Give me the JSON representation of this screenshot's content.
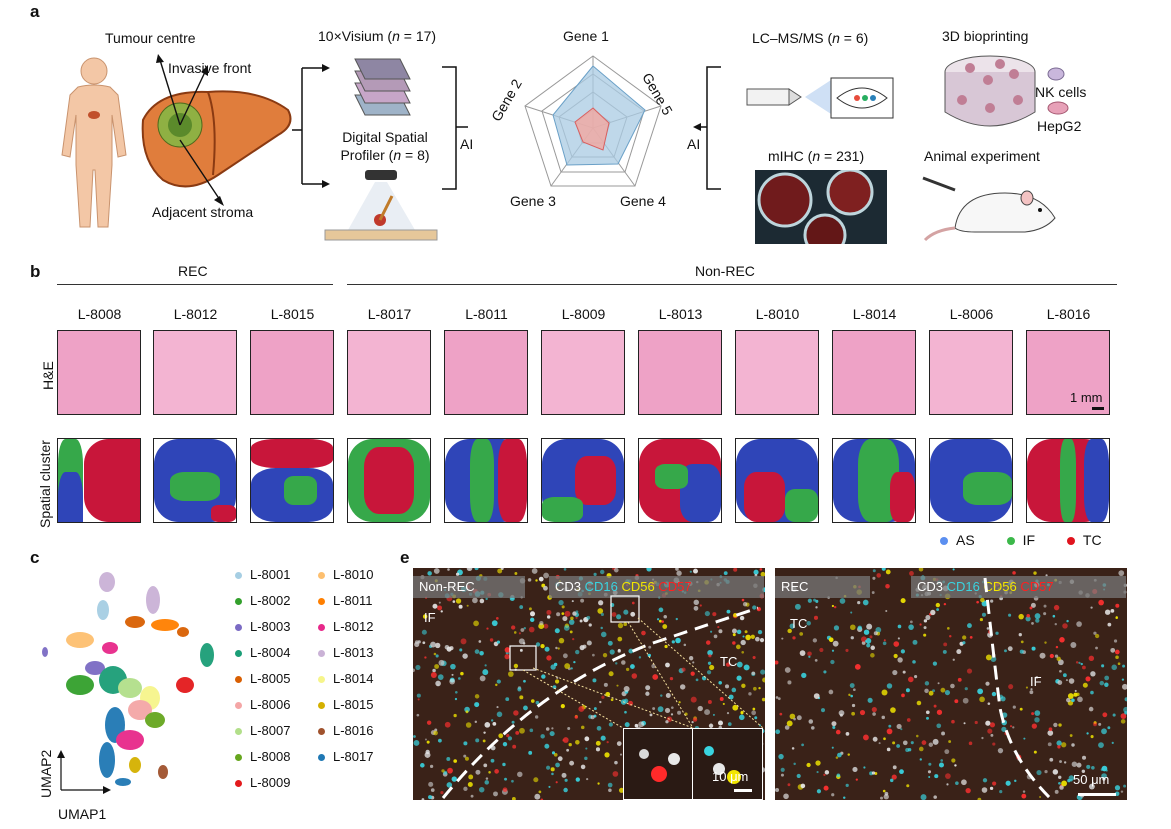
{
  "panels": {
    "a": "a",
    "b": "b",
    "c": "c",
    "e": "e"
  },
  "panel_a": {
    "tumour_centre": "Tumour centre",
    "invasive_front": "Invasive front",
    "adjacent_stroma": "Adjacent stroma",
    "visium_prefix": "10×Visium (",
    "visium_n": "n",
    "visium_suffix": " = 17)",
    "dsp_line1": "Digital Spatial",
    "dsp_line2_prefix": "Profiler (",
    "dsp_n": "n",
    "dsp_line2_suffix": " = 8)",
    "ai_left": "AI",
    "ai_right": "AI",
    "gene1": "Gene 1",
    "gene2": "Gene 2",
    "gene3": "Gene 3",
    "gene4": "Gene 4",
    "gene5": "Gene 5",
    "lcms_prefix": "LC–MS/MS (",
    "lcms_n": "n",
    "lcms_suffix": " = 6)",
    "mihc_prefix": "mIHC (",
    "mihc_n": "n",
    "mihc_suffix": " = 231)",
    "bioprinting": "3D bioprinting",
    "nk_cells": "NK cells",
    "hepg2": "HepG2",
    "animal": "Animal experiment"
  },
  "panel_b": {
    "rec": "REC",
    "non_rec": "Non-REC",
    "row_he": "H&E",
    "row_cluster": "Spatial cluster",
    "scale": "1 mm",
    "samples": [
      "L-8008",
      "L-8012",
      "L-8015",
      "L-8017",
      "L-8011",
      "L-8009",
      "L-8013",
      "L-8010",
      "L-8014",
      "L-8006",
      "L-8016"
    ],
    "legend": [
      {
        "label": "AS",
        "color": "#5b8ff0"
      },
      {
        "label": "IF",
        "color": "#3cb84a"
      },
      {
        "label": "TC",
        "color": "#e0141e"
      }
    ],
    "colors": {
      "as": "#2f45b8",
      "if": "#36a84a",
      "tc": "#c8163a"
    }
  },
  "panel_c": {
    "umap1": "UMAP1",
    "umap2": "UMAP2",
    "legend_col1": [
      {
        "label": "L-8001",
        "color": "#a6cee3"
      },
      {
        "label": "L-8002",
        "color": "#33a02c"
      },
      {
        "label": "L-8003",
        "color": "#7b6bc4"
      },
      {
        "label": "L-8004",
        "color": "#1b9e77"
      },
      {
        "label": "L-8005",
        "color": "#d95f02"
      },
      {
        "label": "L-8006",
        "color": "#f4a6a6"
      },
      {
        "label": "L-8007",
        "color": "#b2df8a"
      },
      {
        "label": "L-8008",
        "color": "#66a61e"
      },
      {
        "label": "L-8009",
        "color": "#e31a1c"
      }
    ],
    "legend_col2": [
      {
        "label": "L-8010",
        "color": "#fdbf6f"
      },
      {
        "label": "L-8011",
        "color": "#ff7f00"
      },
      {
        "label": "L-8012",
        "color": "#e7298a"
      },
      {
        "label": "L-8013",
        "color": "#cab2d6"
      },
      {
        "label": "L-8014",
        "color": "#f6f58b"
      },
      {
        "label": "L-8015",
        "color": "#d4b000"
      },
      {
        "label": "L-8016",
        "color": "#a0522d"
      },
      {
        "label": "L-8017",
        "color": "#1f78b4"
      }
    ]
  },
  "panel_e": {
    "left_label": "Non-REC",
    "right_label": "REC",
    "markers": [
      {
        "label": "CD3",
        "color": "#ffffff"
      },
      {
        "label": "CD16",
        "color": "#39d4e0"
      },
      {
        "label": "CD56",
        "color": "#f2e600"
      },
      {
        "label": "CD57",
        "color": "#ff2020"
      }
    ],
    "if_left": "IF",
    "tc_left": "TC",
    "tc_right": "TC",
    "if_right": "IF",
    "scale_small": "10 μm",
    "scale_large": "50 μm"
  }
}
